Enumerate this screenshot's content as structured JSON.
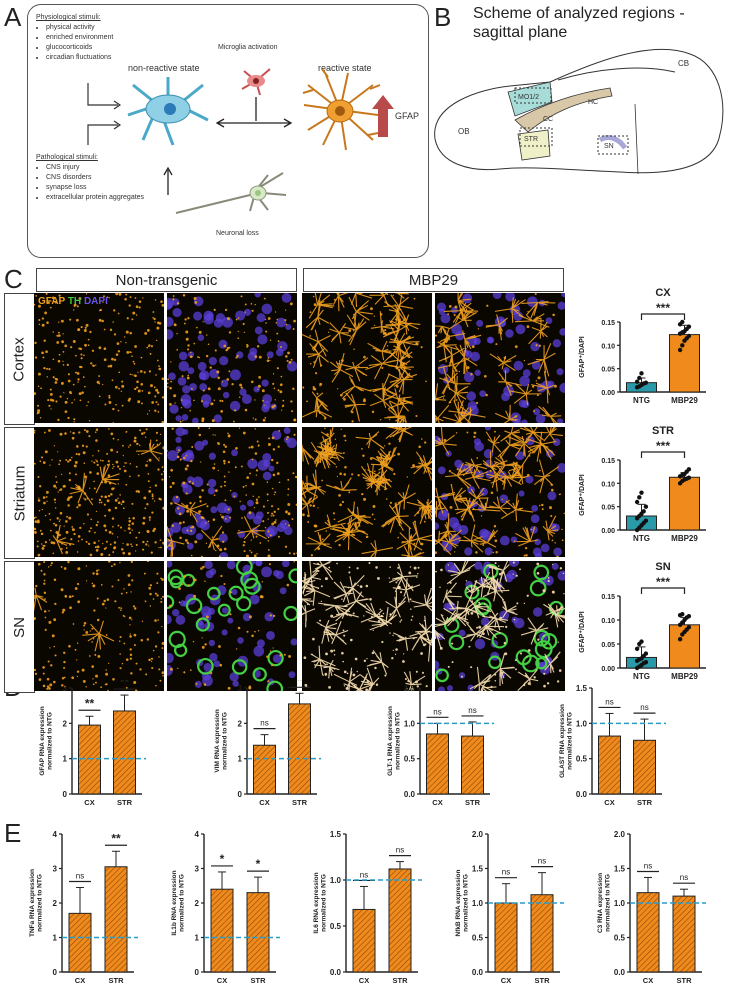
{
  "panel_letters": [
    "A",
    "B",
    "C",
    "D",
    "E"
  ],
  "panelA": {
    "physio_title": "Physiological stimuli:",
    "physio_items": [
      "physical activity",
      "enriched environment",
      "glucocorticoids",
      "circadian fluctuations"
    ],
    "nonreactive": "non-reactive state",
    "reactive": "reactive state",
    "microglia": "Microglia activation",
    "gfap": "GFAP",
    "patho_title": "Pathological stimuli:",
    "patho_items": [
      "CNS injury",
      "CNS disorders",
      "synapse loss",
      "extracellular protein aggregates"
    ],
    "neuronal_loss": "Neuronal loss"
  },
  "panelB": {
    "title": "Scheme of analyzed regions - sagittal plane",
    "labels": {
      "ob": "OB",
      "mo": "MO1/2",
      "cc": "CC",
      "hc": "HC",
      "str": "STR",
      "sn": "SN",
      "cb": "CB"
    }
  },
  "panelC": {
    "headers": [
      "Non-transgenic",
      "MBP29"
    ],
    "rows": [
      "Cortex",
      "Striatum",
      "SN"
    ],
    "stain_gfap": "GFAP",
    "stain_th": "TH",
    "stain_dapi": "DAPI",
    "colors": {
      "gfap": "#f0a020",
      "th": "#3cc83c",
      "dapi": "#5a3fd8",
      "ntg": "#2a9aa8",
      "mbp": "#f08a1c"
    }
  },
  "chart_data": [
    {
      "id": "C-CX",
      "type": "bar",
      "title": "CX",
      "categories": [
        "NTG",
        "MBP29"
      ],
      "values": [
        0.02,
        0.123
      ],
      "errors": [
        0.01,
        0.02
      ],
      "ylabel": "GFAP+/DAPI",
      "ylim": [
        0,
        0.15
      ],
      "yticks": [
        "0.00",
        "0.05",
        "0.10",
        "0.15"
      ],
      "sig": "***",
      "points": [
        [
          0.01,
          0.012,
          0.015,
          0.018,
          0.02,
          0.022,
          0.03,
          0.04
        ],
        [
          0.09,
          0.1,
          0.11,
          0.115,
          0.12,
          0.125,
          0.128,
          0.13,
          0.135,
          0.14,
          0.145,
          0.15
        ]
      ]
    },
    {
      "id": "C-STR",
      "type": "bar",
      "title": "STR",
      "categories": [
        "NTG",
        "MBP29"
      ],
      "values": [
        0.03,
        0.113
      ],
      "errors": [
        0.025,
        0.01
      ],
      "ylabel": "GFAP+/DAPI",
      "ylim": [
        0,
        0.15
      ],
      "yticks": [
        "0.00",
        "0.05",
        "0.10",
        "0.15"
      ],
      "sig": "***",
      "points": [
        [
          0.0,
          0.005,
          0.01,
          0.015,
          0.02,
          0.025,
          0.03,
          0.035,
          0.04,
          0.05,
          0.06,
          0.07,
          0.08
        ],
        [
          0.1,
          0.105,
          0.108,
          0.11,
          0.112,
          0.115,
          0.118,
          0.12,
          0.125,
          0.13
        ]
      ]
    },
    {
      "id": "C-SN",
      "type": "bar",
      "title": "SN",
      "categories": [
        "NTG",
        "MBP29"
      ],
      "values": [
        0.022,
        0.09
      ],
      "errors": [
        0.022,
        0.015
      ],
      "ylabel": "GFAP+/DAPI",
      "ylim": [
        0,
        0.15
      ],
      "yticks": [
        "0.00",
        "0.05",
        "0.10",
        "0.15"
      ],
      "sig": "***",
      "points": [
        [
          0.0,
          0.003,
          0.006,
          0.01,
          0.012,
          0.015,
          0.018,
          0.02,
          0.025,
          0.03,
          0.04,
          0.05,
          0.055
        ],
        [
          0.06,
          0.07,
          0.075,
          0.08,
          0.085,
          0.09,
          0.095,
          0.1,
          0.105,
          0.108,
          0.11,
          0.112
        ]
      ]
    },
    {
      "id": "D-GFAP",
      "type": "bar",
      "categories": [
        "CX",
        "STR"
      ],
      "values": [
        1.95,
        2.35
      ],
      "errors": [
        0.25,
        0.45
      ],
      "ylabel": "GFAP RNA expression normalized to NTG",
      "ylim": [
        0,
        3
      ],
      "yticks": [
        "0",
        "1",
        "2",
        "3"
      ],
      "baseline": 1,
      "sig": [
        "**",
        "**"
      ]
    },
    {
      "id": "D-VIM",
      "type": "bar",
      "categories": [
        "CX",
        "STR"
      ],
      "values": [
        1.38,
        2.55
      ],
      "errors": [
        0.3,
        0.3
      ],
      "ylabel": "VIM RNA expression normalized to NTG",
      "ylim": [
        0,
        3
      ],
      "yticks": [
        "0",
        "1",
        "2",
        "3"
      ],
      "baseline": 1,
      "sig": [
        "ns",
        "**"
      ]
    },
    {
      "id": "D-GLT1",
      "type": "bar",
      "categories": [
        "CX",
        "STR"
      ],
      "values": [
        0.85,
        0.82
      ],
      "errors": [
        0.15,
        0.2
      ],
      "ylabel": "GLT-1 RNA expression normalized to NTG",
      "ylim": [
        0,
        1.5
      ],
      "yticks": [
        "0.0",
        "0.5",
        "1.0",
        "1.5"
      ],
      "baseline": 1,
      "sig": [
        "ns",
        "ns"
      ]
    },
    {
      "id": "D-GLAST",
      "type": "bar",
      "categories": [
        "CX",
        "STR"
      ],
      "values": [
        0.82,
        0.76
      ],
      "errors": [
        0.32,
        0.3
      ],
      "ylabel": "GLAST RNA expression normalized to NTG",
      "ylim": [
        0,
        1.5
      ],
      "yticks": [
        "0.0",
        "0.5",
        "1.0",
        "1.5"
      ],
      "baseline": 1,
      "sig": [
        "ns",
        "ns"
      ]
    },
    {
      "id": "E-TNFa",
      "type": "bar",
      "categories": [
        "CX",
        "STR"
      ],
      "values": [
        1.7,
        3.05
      ],
      "errors": [
        0.75,
        0.45
      ],
      "ylabel": "TNFa RNA expression normalized to NTG",
      "ylim": [
        0,
        4
      ],
      "yticks": [
        "0",
        "1",
        "2",
        "3",
        "4"
      ],
      "baseline": 1,
      "sig": [
        "ns",
        "**"
      ]
    },
    {
      "id": "E-IL1b",
      "type": "bar",
      "categories": [
        "CX",
        "STR"
      ],
      "values": [
        2.4,
        2.3
      ],
      "errors": [
        0.5,
        0.45
      ],
      "ylabel": "IL1b RNA expression normalized to NTG",
      "ylim": [
        0,
        4
      ],
      "yticks": [
        "0",
        "1",
        "2",
        "3",
        "4"
      ],
      "baseline": 1,
      "sig": [
        "*",
        "*"
      ]
    },
    {
      "id": "E-IL6",
      "type": "bar",
      "categories": [
        "CX",
        "STR"
      ],
      "values": [
        0.68,
        1.12
      ],
      "errors": [
        0.25,
        0.08
      ],
      "ylabel": "IL6 RNA expression normalized to NTG",
      "ylim": [
        0,
        1.5
      ],
      "yticks": [
        "0.0",
        "0.5",
        "1.0",
        "1.5"
      ],
      "baseline": 1,
      "sig": [
        "ns",
        "ns"
      ]
    },
    {
      "id": "E-NFkB",
      "type": "bar",
      "categories": [
        "CX",
        "STR"
      ],
      "values": [
        1.0,
        1.12
      ],
      "errors": [
        0.28,
        0.32
      ],
      "ylabel": "NfkB RNA expression normalized to NTG",
      "ylim": [
        0,
        2
      ],
      "yticks": [
        "0.0",
        "0.5",
        "1.0",
        "1.5",
        "2.0"
      ],
      "baseline": 1,
      "sig": [
        "ns",
        "ns"
      ]
    },
    {
      "id": "E-C3",
      "type": "bar",
      "categories": [
        "CX",
        "STR"
      ],
      "values": [
        1.15,
        1.1
      ],
      "errors": [
        0.22,
        0.1
      ],
      "ylabel": "C3 RNA expression normalized to NTG",
      "ylim": [
        0,
        2
      ],
      "yticks": [
        "0.0",
        "0.5",
        "1.0",
        "1.5",
        "2.0"
      ],
      "baseline": 1,
      "sig": [
        "ns",
        "ns"
      ]
    }
  ]
}
